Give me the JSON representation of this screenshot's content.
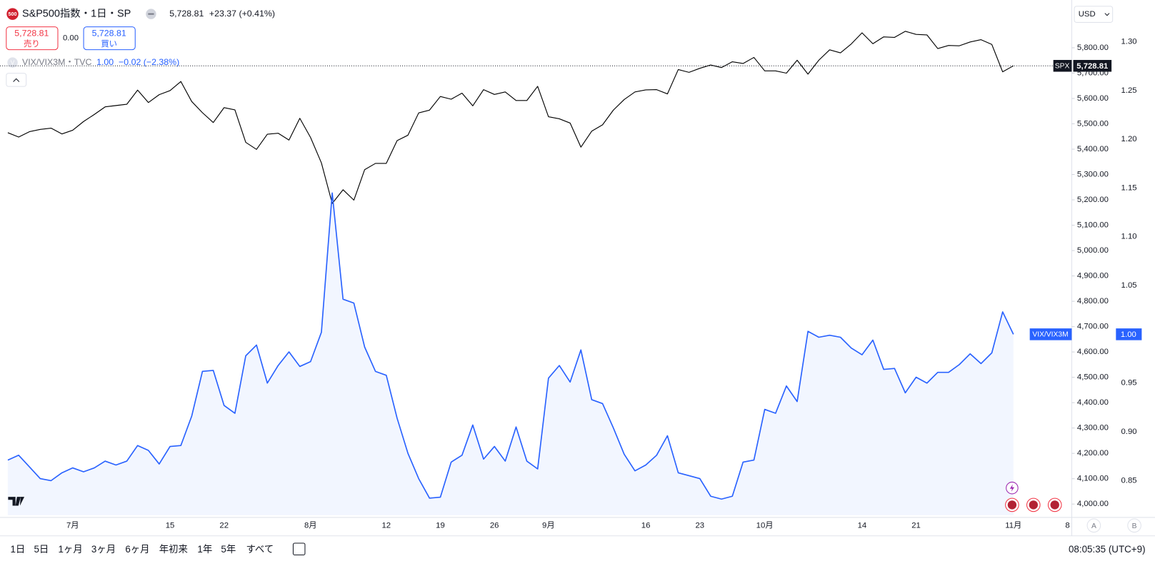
{
  "legend": {
    "icon": "500",
    "symbol": "S&P500指数・1日・SP",
    "price": "5,728.81",
    "change": "+23.37 (+0.41%)",
    "sell_price": "5,728.81",
    "sell": "売り",
    "spread": "0.00",
    "buy_price": "5,728.81",
    "buy": "買い"
  },
  "indicator": {
    "icon": "V",
    "name": "VIX/VIX3M・TVC",
    "value": "1.00",
    "change": "−0.02 (−2.38%)"
  },
  "currency": "USD",
  "scale_buttons": [
    "A",
    "B"
  ],
  "toolbar": {
    "ranges": [
      "1日",
      "5日",
      "1ヶ月",
      "3ヶ月",
      "6ヶ月",
      "年初来",
      "1年",
      "5年",
      "すべて"
    ],
    "time": "08:05:35 (UTC+9)"
  },
  "chart_data": {
    "type": "line",
    "grid": false,
    "categories": [
      null,
      null,
      null,
      null,
      null,
      null,
      "7月",
      null,
      null,
      null,
      null,
      null,
      null,
      null,
      null,
      "15",
      null,
      null,
      null,
      null,
      "22",
      null,
      null,
      null,
      null,
      null,
      null,
      null,
      "8月",
      null,
      null,
      null,
      null,
      null,
      null,
      "12",
      null,
      null,
      null,
      null,
      "19",
      null,
      null,
      null,
      null,
      "26",
      null,
      null,
      null,
      null,
      "9月",
      null,
      null,
      null,
      null,
      null,
      null,
      null,
      null,
      "16",
      null,
      null,
      null,
      null,
      "23",
      null,
      null,
      null,
      null,
      null,
      "10月",
      null,
      null,
      null,
      null,
      null,
      null,
      null,
      null,
      "14",
      null,
      null,
      null,
      null,
      "21",
      null,
      null,
      null,
      null,
      null,
      null,
      null,
      null,
      "11月",
      null,
      null,
      null,
      null,
      "8"
    ],
    "series": [
      {
        "name": "SPX",
        "color": "#000000",
        "last_label": "5,728.81",
        "values": [
          5465,
          5448,
          5469,
          5478,
          5483,
          5460,
          5475,
          5509,
          5537,
          5567,
          5572,
          5577,
          5633,
          5584,
          5615,
          5631,
          5667,
          5588,
          5544,
          5505,
          5564,
          5555,
          5427,
          5399,
          5459,
          5463,
          5436,
          5522,
          5446,
          5346,
          5186,
          5240,
          5199,
          5319,
          5344,
          5344,
          5434,
          5455,
          5543,
          5554,
          5608,
          5597,
          5621,
          5571,
          5635,
          5616,
          5626,
          5592,
          5592,
          5648,
          5528,
          5520,
          5503,
          5408,
          5471,
          5496,
          5554,
          5596,
          5626,
          5634,
          5635,
          5618,
          5714,
          5703,
          5719,
          5732,
          5722,
          5745,
          5738,
          5762,
          5709,
          5709,
          5700,
          5751,
          5696,
          5751,
          5792,
          5780,
          5815,
          5859,
          5816,
          5843,
          5841,
          5865,
          5853,
          5851,
          5797,
          5809,
          5808,
          5823,
          5832,
          5813,
          5705,
          5728.81,
          null,
          null,
          null,
          null,
          null
        ]
      },
      {
        "name": "VIX/VIX3M",
        "color": "#2962ff",
        "axis": "y2",
        "last_label": "1.00",
        "values": [
          0.871,
          0.876,
          0.864,
          0.852,
          0.85,
          0.858,
          0.863,
          0.859,
          0.863,
          0.87,
          0.866,
          0.87,
          0.886,
          0.881,
          0.867,
          0.885,
          0.886,
          0.916,
          0.962,
          0.963,
          0.927,
          0.919,
          0.978,
          0.989,
          0.95,
          0.968,
          0.982,
          0.967,
          0.972,
          1.002,
          1.145,
          1.036,
          1.032,
          0.987,
          0.962,
          0.958,
          0.914,
          0.878,
          0.852,
          0.832,
          0.833,
          0.869,
          0.876,
          0.907,
          0.872,
          0.885,
          0.87,
          0.905,
          0.87,
          0.862,
          0.955,
          0.968,
          0.951,
          0.984,
          0.933,
          0.929,
          0.904,
          0.877,
          0.86,
          0.866,
          0.876,
          0.896,
          0.858,
          0.855,
          0.852,
          0.834,
          0.831,
          0.834,
          0.869,
          0.871,
          0.923,
          0.919,
          0.947,
          0.931,
          1.003,
          0.997,
          0.999,
          0.997,
          0.986,
          0.979,
          0.994,
          0.964,
          0.965,
          0.94,
          0.956,
          0.95,
          0.961,
          0.961,
          0.969,
          0.98,
          0.97,
          0.981,
          1.023,
          1.0,
          null,
          null,
          null,
          null,
          null
        ]
      }
    ],
    "ylim": [
      3956,
      5974
    ],
    "yticks": [
      {
        "value": 4000,
        "label": "4,000.00"
      },
      {
        "value": 4100,
        "label": "4,100.00"
      },
      {
        "value": 4200,
        "label": "4,200.00"
      },
      {
        "value": 4300,
        "label": "4,300.00"
      },
      {
        "value": 4400,
        "label": "4,400.00"
      },
      {
        "value": 4500,
        "label": "4,500.00"
      },
      {
        "value": 4600,
        "label": "4,600.00"
      },
      {
        "value": 4700,
        "label": "4,700.00"
      },
      {
        "value": 4800,
        "label": "4,800.00"
      },
      {
        "value": 4900,
        "label": "4,900.00"
      },
      {
        "value": 5000,
        "label": "5,000.00"
      },
      {
        "value": 5100,
        "label": "5,100.00"
      },
      {
        "value": 5200,
        "label": "5,200.00"
      },
      {
        "value": 5300,
        "label": "5,300.00"
      },
      {
        "value": 5400,
        "label": "5,400.00"
      },
      {
        "value": 5500,
        "label": "5,500.00"
      },
      {
        "value": 5600,
        "label": "5,600.00"
      },
      {
        "value": 5700,
        "label": "5,700.00"
      },
      {
        "value": 5800,
        "label": "5,800.00"
      }
    ],
    "y2lim": [
      0.8145,
      1.339
    ],
    "y2ticks": [
      0.85,
      {
        "value": 0.9,
        "label": "0.90"
      },
      0.95,
      {
        "value": 1.0,
        "label": "1.00"
      },
      1.05,
      {
        "value": 1.1,
        "label": "1.10"
      },
      1.15,
      {
        "value": 1.2,
        "label": "1.20"
      },
      1.25,
      {
        "value": 1.3,
        "label": "1.30"
      }
    ]
  }
}
